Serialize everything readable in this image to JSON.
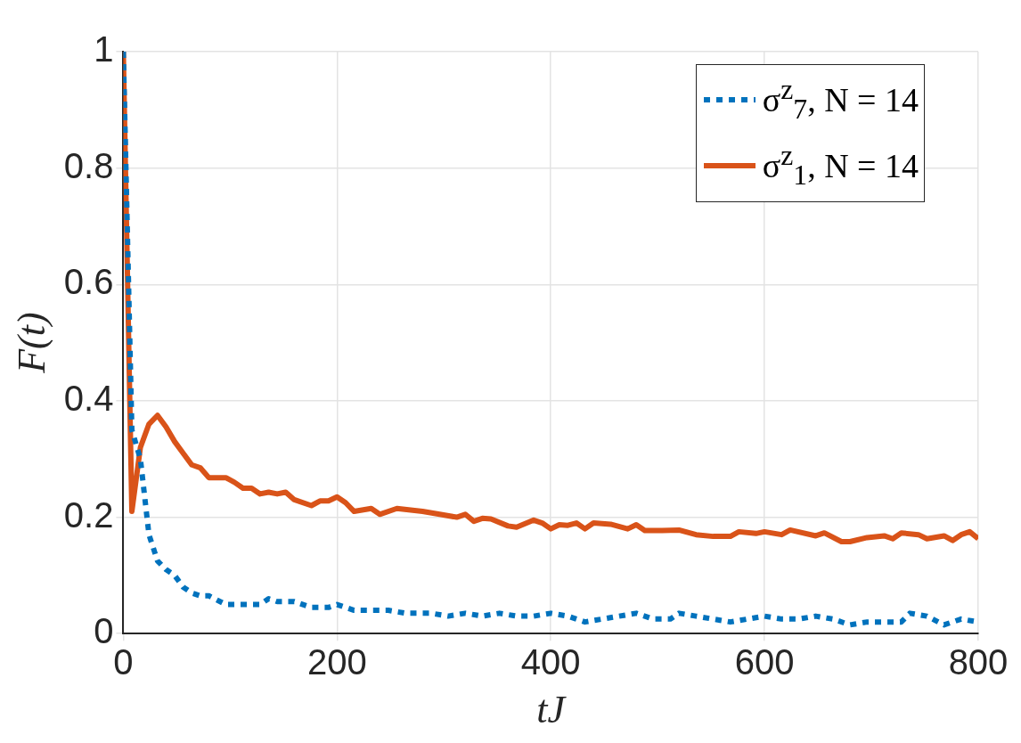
{
  "chart_data": {
    "type": "line",
    "xlabel": "tJ",
    "ylabel": "F(t)",
    "xlim": [
      0,
      800
    ],
    "xticks": [
      0,
      200,
      400,
      600,
      800
    ],
    "ylim": [
      0,
      1
    ],
    "yticks": [
      0,
      0.2,
      0.4,
      0.6,
      0.8,
      1
    ],
    "grid": true,
    "legend": "top right",
    "marker": "none",
    "series": [
      {
        "name": "σ$^{z}$$_{7}$, N = 14",
        "color": "#0072bd",
        "line_style": "dotted",
        "x": [
          0,
          8,
          16,
          24,
          32,
          40,
          48,
          56,
          64,
          72,
          80,
          96,
          112,
          128,
          136,
          144,
          160,
          176,
          192,
          200,
          216,
          232,
          248,
          264,
          288,
          304,
          320,
          336,
          352,
          368,
          384,
          400,
          416,
          432,
          448,
          464,
          480,
          496,
          512,
          520,
          536,
          552,
          568,
          584,
          600,
          616,
          632,
          648,
          664,
          680,
          696,
          712,
          728,
          736,
          752,
          768,
          784,
          800
        ],
        "values": [
          1,
          0.35,
          0.3,
          0.17,
          0.125,
          0.11,
          0.1,
          0.08,
          0.07,
          0.065,
          0.065,
          0.05,
          0.05,
          0.05,
          0.06,
          0.055,
          0.055,
          0.045,
          0.045,
          0.05,
          0.04,
          0.04,
          0.04,
          0.035,
          0.035,
          0.03,
          0.035,
          0.03,
          0.035,
          0.03,
          0.03,
          0.035,
          0.03,
          0.02,
          0.025,
          0.03,
          0.035,
          0.025,
          0.025,
          0.035,
          0.03,
          0.025,
          0.02,
          0.025,
          0.03,
          0.025,
          0.025,
          0.03,
          0.025,
          0.015,
          0.02,
          0.02,
          0.02,
          0.035,
          0.03,
          0.015,
          0.025,
          0.02
        ]
      },
      {
        "name": "σ$^{z}$$_{1}$, N = 14",
        "color": "#d95319",
        "line_style": "solid",
        "x": [
          0,
          8,
          16,
          24,
          32,
          40,
          48,
          56,
          64,
          72,
          80,
          96,
          104,
          112,
          120,
          128,
          136,
          144,
          152,
          160,
          176,
          184,
          192,
          200,
          208,
          216,
          232,
          240,
          256,
          280,
          296,
          312,
          320,
          328,
          336,
          344,
          360,
          368,
          384,
          392,
          400,
          408,
          416,
          424,
          432,
          440,
          456,
          472,
          480,
          488,
          504,
          520,
          536,
          552,
          568,
          576,
          592,
          600,
          616,
          624,
          648,
          656,
          672,
          680,
          696,
          712,
          720,
          728,
          744,
          752,
          768,
          776,
          784,
          792,
          800
        ],
        "values": [
          1,
          0.21,
          0.32,
          0.36,
          0.375,
          0.355,
          0.33,
          0.31,
          0.29,
          0.285,
          0.268,
          0.268,
          0.26,
          0.25,
          0.25,
          0.24,
          0.243,
          0.24,
          0.243,
          0.23,
          0.22,
          0.228,
          0.228,
          0.235,
          0.225,
          0.21,
          0.215,
          0.205,
          0.215,
          0.21,
          0.205,
          0.2,
          0.205,
          0.193,
          0.198,
          0.197,
          0.185,
          0.183,
          0.195,
          0.19,
          0.18,
          0.187,
          0.186,
          0.19,
          0.18,
          0.19,
          0.188,
          0.18,
          0.187,
          0.177,
          0.177,
          0.178,
          0.17,
          0.167,
          0.167,
          0.175,
          0.172,
          0.175,
          0.17,
          0.178,
          0.168,
          0.173,
          0.158,
          0.158,
          0.165,
          0.168,
          0.163,
          0.173,
          0.17,
          0.163,
          0.168,
          0.16,
          0.17,
          0.175,
          0.163
        ]
      }
    ]
  }
}
